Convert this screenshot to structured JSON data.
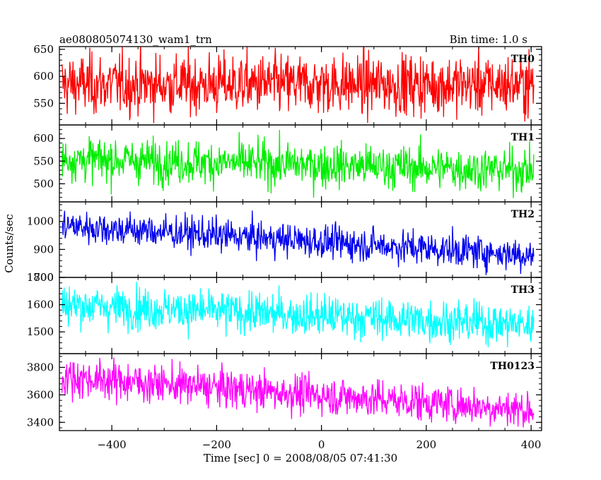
{
  "header": {
    "title": "ae080805074130_wam1_trn",
    "bin_time": "Bin time: 1.0 s"
  },
  "chart_data": {
    "type": "line",
    "xlabel": "Time [sec] 0 = 2008/08/05 07:41:30",
    "ylabel": "Counts/sec",
    "xlim": [
      -500,
      420
    ],
    "x_ticks": [
      "−400",
      "−200",
      "0",
      "200",
      "400"
    ],
    "x_tick_values": [
      -400,
      -200,
      0,
      200,
      400
    ],
    "x_start": -495,
    "x_end": 405,
    "panels": [
      {
        "name": "TH0",
        "color": "#ff0000",
        "ylim": [
          510,
          655
        ],
        "yticks": [
          550,
          600,
          650
        ],
        "ytick_labels": [
          "550",
          "600",
          "650"
        ],
        "trend_start": 585,
        "trend_end": 585,
        "noise": 28
      },
      {
        "name": "TH1",
        "color": "#00ee00",
        "ylim": [
          460,
          630
        ],
        "yticks": [
          500,
          550,
          600
        ],
        "ytick_labels": [
          "500",
          "550",
          "600"
        ],
        "trend_start": 555,
        "trend_end": 530,
        "noise": 24
      },
      {
        "name": "TH2",
        "color": "#0000ee",
        "ylim": [
          800,
          1070
        ],
        "yticks": [
          800,
          900,
          1000
        ],
        "ytick_labels": [
          "800",
          "900",
          "1000"
        ],
        "trend_start": 985,
        "trend_end": 880,
        "noise": 30
      },
      {
        "name": "TH3",
        "color": "#00ffff",
        "ylim": [
          1420,
          1700
        ],
        "yticks": [
          1500,
          1600,
          1700
        ],
        "ytick_labels": [
          "1500",
          "1600",
          "1700"
        ],
        "trend_start": 1600,
        "trend_end": 1525,
        "noise": 38
      },
      {
        "name": "TH0123",
        "color": "#ff00ff",
        "ylim": [
          3340,
          3900
        ],
        "yticks": [
          3400,
          3600,
          3800
        ],
        "ytick_labels": [
          "3400",
          "3600",
          "3800"
        ],
        "trend_start": 3730,
        "trend_end": 3490,
        "noise": 70
      }
    ]
  }
}
